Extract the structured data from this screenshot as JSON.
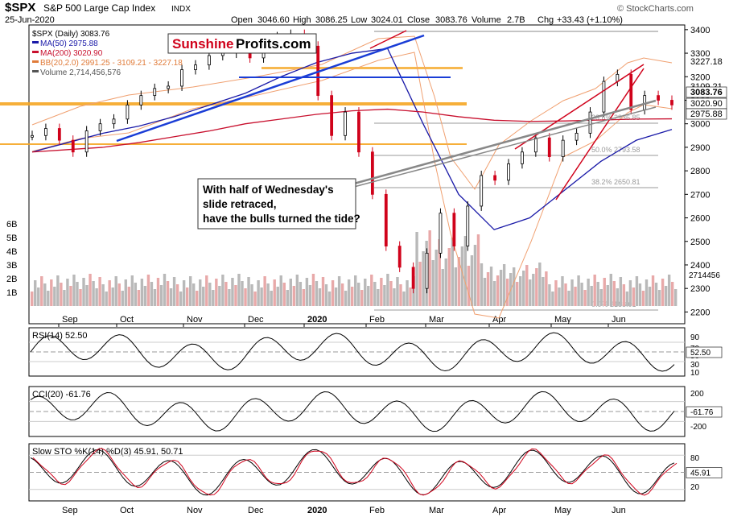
{
  "header": {
    "symbol": "$SPX",
    "name": "S&P 500 Large Cap Index",
    "exchange": "INDX",
    "date": "25-Jun-2020",
    "open_label": "Open",
    "open": "3046.60",
    "high_label": "High",
    "high": "3086.25",
    "low_label": "Low",
    "low": "3024.01",
    "close_label": "Close",
    "close": "3083.76",
    "volume_label": "Volume",
    "volume": "2.7B",
    "chg_label": "Chg",
    "chg": "+33.43 (+1.10%)",
    "watermark": "© StockCharts.com"
  },
  "logo": {
    "part1": "Sunshine",
    "part2": "Profits.com"
  },
  "legend": [
    {
      "text": "$SPX (Daily) 3083.76",
      "color": "#000000"
    },
    {
      "text": "MA(50) 2975.88",
      "color": "#1a1aa8"
    },
    {
      "text": "MA(200) 3020.90",
      "color": "#c8102e"
    },
    {
      "text": "BB(20,2.0) 2991.25 - 3109.21 - 3227.18",
      "color": "#e07b39"
    },
    {
      "text": "Volume 2,714,456,576",
      "color": "#555555"
    }
  ],
  "annotation": "With half of Wednesday's slide retraced, have the bulls turned the tide?",
  "colors": {
    "up": "#000000",
    "down": "#d0021b",
    "ma50": "#1a1aa8",
    "ma200": "#c8102e",
    "bb": "#f0a070",
    "hline": "#f5a623",
    "vol_up": "#b9b9b9",
    "vol_down": "#e8a9a9",
    "indicator_fill": "#5b8a5b",
    "indicator_neg": "#a05050"
  },
  "chart_data": [
    {
      "type": "line",
      "title": "$SPX (Daily) 3083.76",
      "x_tick_labels": [
        "Sep",
        "Oct",
        "Nov",
        "Dec",
        "2020",
        "Feb",
        "Mar",
        "Apr",
        "May",
        "Jun"
      ],
      "ylim": [
        2150,
        3420
      ],
      "y_tick_labels": [
        "3400",
        "3300",
        "3200",
        "3100",
        "3000",
        "2900",
        "2800",
        "2700",
        "2600",
        "2500",
        "2400",
        "2300",
        "2200"
      ],
      "price_labels": [
        "3227.18",
        "3109.21",
        "3083.76",
        "3020.90",
        "2975.88"
      ],
      "volume_axis_labels": [
        "6B",
        "5B",
        "4B",
        "3B",
        "2B",
        "1B"
      ],
      "volume_label": "2714456",
      "fib_labels": [
        "23.6% 2936.85",
        "50.0% 2793.58",
        "38.2% 2650.81",
        "0.0% 2188.01"
      ],
      "series": [
        {
          "name": "MA(50) 2975.88",
          "values": [
            2880,
            2920,
            2960,
            2990,
            3030,
            3080,
            3130,
            3200,
            3260,
            3300,
            3320,
            3000,
            2700,
            2550,
            2600,
            2720,
            2840,
            2930,
            2976
          ]
        },
        {
          "name": "MA(200) 3020.90",
          "values": [
            2880,
            2890,
            2900,
            2920,
            2945,
            2970,
            3000,
            3020,
            3040,
            3055,
            3062,
            3050,
            3030,
            3015,
            3010,
            3012,
            3016,
            3020,
            3021
          ]
        }
      ],
      "close_series": [
        2950,
        2980,
        2930,
        2880,
        2970,
        3000,
        3020,
        3080,
        3120,
        3150,
        3160,
        3230,
        3250,
        3290,
        3300,
        3330,
        3280,
        3320,
        3370,
        3380,
        3330,
        3120,
        2950,
        3050,
        2880,
        2700,
        2480,
        2390,
        2300,
        2450,
        2620,
        2480,
        2650,
        2780,
        2760,
        2830,
        2880,
        2940,
        2860,
        2930,
        2960,
        3050,
        3180,
        3210,
        3060,
        3120,
        3100,
        3080
      ]
    },
    {
      "type": "line",
      "title": "RSI(14) 52.50",
      "ylim": [
        0,
        100
      ],
      "y_tick_labels": [
        "90",
        "70",
        "50",
        "30",
        "10"
      ],
      "current_label": "52.50"
    },
    {
      "type": "line",
      "title": "CCI(20) -61.76",
      "ylim": [
        -250,
        250
      ],
      "y_tick_labels": [
        "200",
        "0",
        "-200"
      ],
      "current_label": "-61.76"
    },
    {
      "type": "line",
      "title": "Slow STO %K(14) %D(3) 45.91, 50.71",
      "ylim": [
        0,
        100
      ],
      "y_tick_labels": [
        "80",
        "50",
        "20"
      ],
      "current_label": "45.91"
    }
  ]
}
